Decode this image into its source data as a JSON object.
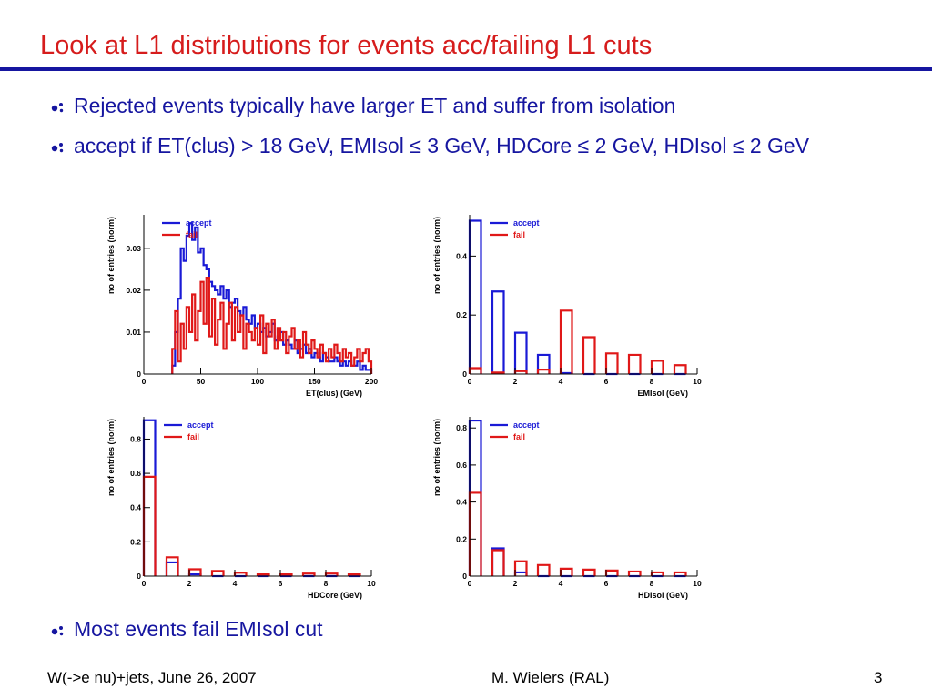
{
  "slide": {
    "title": "Look at L1 distributions for events acc/failing L1 cuts",
    "bullets": [
      "Rejected events typically have larger ET and suffer from isolation",
      "accept if ET(clus) > 18 GeV, EMIsol ≤ 3 GeV, HDCore ≤ 2 GeV, HDIsol ≤ 2 GeV",
      "Most events fail EMIsol cut"
    ],
    "footer": {
      "left": "W(->e nu)+jets, June 26, 2007",
      "center": "M. Wielers (RAL)",
      "right": "3"
    }
  },
  "colors": {
    "title": "#d61c1c",
    "text": "#1616a0",
    "accept": "#1a1ad6",
    "fail": "#e01818"
  },
  "chart_data": [
    {
      "id": "et",
      "type": "histogram",
      "xlabel": "ET(clus) (GeV)",
      "ylabel": "no of entries (norm)",
      "xlim": [
        0,
        200
      ],
      "ylim": [
        0,
        0.038
      ],
      "xticks": [
        0,
        50,
        100,
        150,
        200
      ],
      "xtick_labels": [
        "0",
        "50",
        "100",
        "150",
        "200"
      ],
      "yticks": [
        0,
        0.01,
        0.02,
        0.03
      ],
      "ytick_labels": [
        "0",
        "0.01",
        "0.02",
        "0.03"
      ],
      "legend": [
        "accept",
        "fail"
      ],
      "legend_position": "top-left",
      "bin_edges_start": 25,
      "bin_width": 2.5,
      "series": [
        {
          "name": "accept",
          "values": [
            0.002,
            0.01,
            0.018,
            0.03,
            0.027,
            0.033,
            0.036,
            0.032,
            0.035,
            0.029,
            0.03,
            0.026,
            0.025,
            0.022,
            0.021,
            0.02,
            0.019,
            0.021,
            0.018,
            0.02,
            0.016,
            0.017,
            0.018,
            0.015,
            0.014,
            0.016,
            0.013,
            0.012,
            0.014,
            0.011,
            0.012,
            0.01,
            0.011,
            0.009,
            0.01,
            0.012,
            0.008,
            0.009,
            0.01,
            0.007,
            0.008,
            0.007,
            0.006,
            0.008,
            0.005,
            0.006,
            0.007,
            0.005,
            0.006,
            0.004,
            0.005,
            0.004,
            0.003,
            0.005,
            0.004,
            0.003,
            0.003,
            0.004,
            0.003,
            0.002,
            0.003,
            0.002,
            0.003,
            0.002,
            0.002,
            0.003,
            0.001,
            0.002,
            0.001,
            0.001
          ]
        },
        {
          "name": "fail",
          "values": [
            0.006,
            0.015,
            0.003,
            0.012,
            0.006,
            0.016,
            0.01,
            0.019,
            0.008,
            0.015,
            0.022,
            0.012,
            0.023,
            0.009,
            0.018,
            0.007,
            0.013,
            0.017,
            0.006,
            0.012,
            0.017,
            0.008,
            0.016,
            0.01,
            0.014,
            0.006,
            0.012,
            0.01,
            0.008,
            0.011,
            0.007,
            0.014,
            0.005,
            0.012,
            0.009,
            0.013,
            0.006,
            0.011,
            0.008,
            0.01,
            0.005,
            0.009,
            0.011,
            0.006,
            0.008,
            0.004,
            0.01,
            0.007,
            0.005,
            0.008,
            0.006,
            0.004,
            0.007,
            0.005,
            0.003,
            0.006,
            0.004,
            0.007,
            0.005,
            0.003,
            0.006,
            0.004,
            0.005,
            0.002,
            0.004,
            0.006,
            0.003,
            0.005,
            0.006,
            0.003
          ]
        }
      ]
    },
    {
      "id": "emisol",
      "type": "histogram",
      "xlabel": "EMIsol (GeV)",
      "ylabel": "no of entries (norm)",
      "xlim": [
        0,
        10
      ],
      "ylim": [
        0,
        0.54
      ],
      "xticks": [
        0,
        2,
        4,
        6,
        8,
        10
      ],
      "xtick_labels": [
        "0",
        "2",
        "4",
        "6",
        "8",
        "10"
      ],
      "yticks": [
        0,
        0.2,
        0.4
      ],
      "ytick_labels": [
        "0",
        "0.2",
        "0.4"
      ],
      "legend": [
        "accept",
        "fail"
      ],
      "legend_position": "top-right",
      "bin_edges_start": 0,
      "bin_width": 1,
      "bar_fraction": 0.5,
      "series": [
        {
          "name": "accept",
          "values": [
            0.52,
            0.28,
            0.14,
            0.065,
            0.003,
            0,
            0,
            0,
            0,
            0
          ]
        },
        {
          "name": "fail",
          "values": [
            0.02,
            0.005,
            0.01,
            0.015,
            0.215,
            0.125,
            0.07,
            0.065,
            0.045,
            0.03
          ]
        }
      ]
    },
    {
      "id": "hdcore",
      "type": "histogram",
      "xlabel": "HDCore (GeV)",
      "ylabel": "no of entries (norm)",
      "xlim": [
        0,
        10
      ],
      "ylim": [
        0,
        0.93
      ],
      "xticks": [
        0,
        2,
        4,
        6,
        8,
        10
      ],
      "xtick_labels": [
        "0",
        "2",
        "4",
        "6",
        "8",
        "10"
      ],
      "yticks": [
        0,
        0.2,
        0.4,
        0.6,
        0.8
      ],
      "ytick_labels": [
        "0",
        "0.2",
        "0.4",
        "0.6",
        "0.8"
      ],
      "legend": [
        "accept",
        "fail"
      ],
      "legend_position": "top-right",
      "bin_edges_start": 0,
      "bin_width": 1,
      "bar_fraction": 0.5,
      "series": [
        {
          "name": "accept",
          "values": [
            0.91,
            0.08,
            0.01,
            0,
            0,
            0,
            0,
            0,
            0,
            0
          ]
        },
        {
          "name": "fail",
          "values": [
            0.58,
            0.11,
            0.04,
            0.03,
            0.02,
            0.01,
            0.01,
            0.015,
            0.015,
            0.01
          ]
        }
      ]
    },
    {
      "id": "hdisol",
      "type": "histogram",
      "xlabel": "HDIsol (GeV)",
      "ylabel": "no of entries (norm)",
      "xlim": [
        0,
        10
      ],
      "ylim": [
        0,
        0.86
      ],
      "xticks": [
        0,
        2,
        4,
        6,
        8,
        10
      ],
      "xtick_labels": [
        "0",
        "2",
        "4",
        "6",
        "8",
        "10"
      ],
      "yticks": [
        0,
        0.2,
        0.4,
        0.6,
        0.8
      ],
      "ytick_labels": [
        "0",
        "0.2",
        "0.4",
        "0.6",
        "0.8"
      ],
      "legend": [
        "accept",
        "fail"
      ],
      "legend_position": "top-right",
      "bin_edges_start": 0,
      "bin_width": 1,
      "bar_fraction": 0.5,
      "series": [
        {
          "name": "accept",
          "values": [
            0.84,
            0.15,
            0.02,
            0,
            0,
            0,
            0,
            0,
            0,
            0
          ]
        },
        {
          "name": "fail",
          "values": [
            0.45,
            0.14,
            0.08,
            0.06,
            0.04,
            0.035,
            0.03,
            0.025,
            0.02,
            0.02
          ]
        }
      ]
    }
  ]
}
